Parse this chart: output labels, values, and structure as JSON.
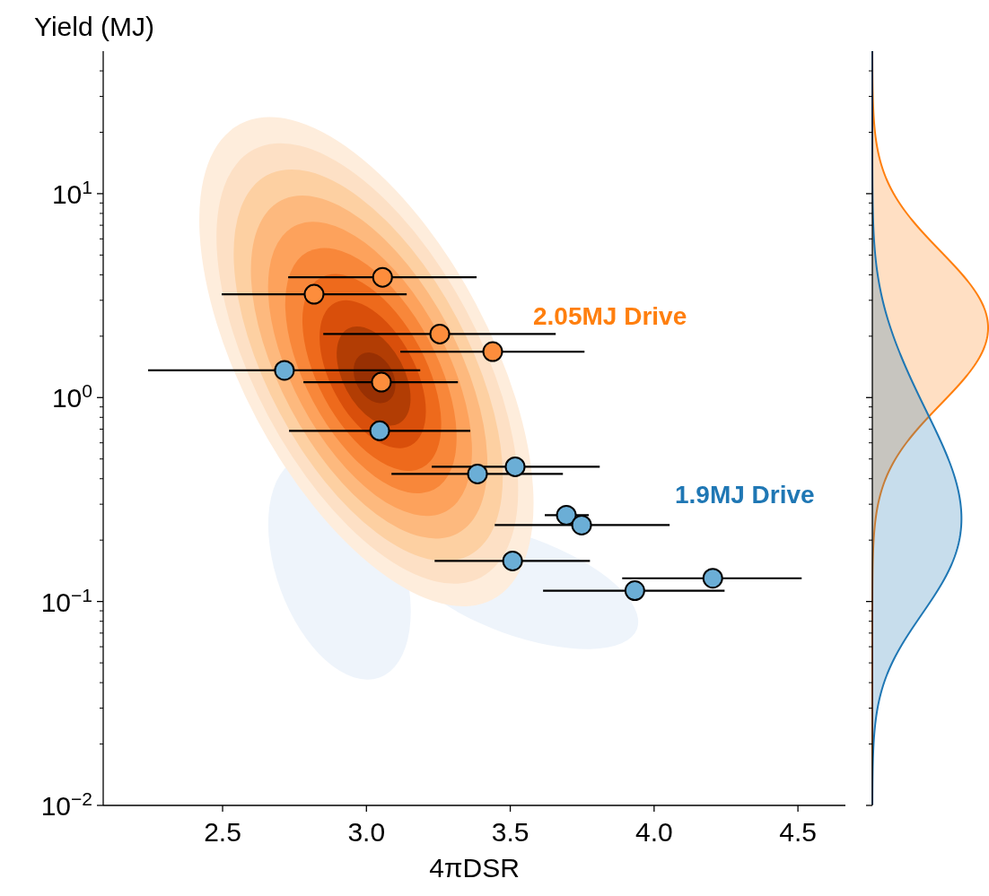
{
  "chart_data": {
    "type": "scatter",
    "xlabel": "4πDSR",
    "ylabel": "Yield (MJ)",
    "log": "y",
    "marker": "circle",
    "xlim": [
      2.085,
      4.665
    ],
    "xticks": [
      {
        "value": 2.5,
        "label": "2.5"
      },
      {
        "value": 3,
        "label": "3.0"
      },
      {
        "value": 3.5,
        "label": "3.5"
      },
      {
        "value": 4,
        "label": "4.0"
      },
      {
        "value": 4.5,
        "label": "4.5"
      }
    ],
    "ylim": [
      0.01,
      50
    ],
    "yticks": [
      {
        "value": 0.01,
        "label": "10$^{−2}$"
      },
      {
        "value": 0.02,
        "label": null
      },
      {
        "value": 0.03,
        "label": null
      },
      {
        "value": 0.04,
        "label": null
      },
      {
        "value": 0.05,
        "label": null
      },
      {
        "value": 0.06,
        "label": null
      },
      {
        "value": 0.07,
        "label": null
      },
      {
        "value": 0.08,
        "label": null
      },
      {
        "value": 0.09,
        "label": null
      },
      {
        "value": 0.1,
        "label": "10$^{−1}$"
      },
      {
        "value": 0.2,
        "label": null
      },
      {
        "value": 0.3,
        "label": null
      },
      {
        "value": 0.4,
        "label": null
      },
      {
        "value": 0.5,
        "label": null
      },
      {
        "value": 0.6,
        "label": null
      },
      {
        "value": 0.7,
        "label": null
      },
      {
        "value": 0.8,
        "label": null
      },
      {
        "value": 0.9,
        "label": null
      },
      {
        "value": 1,
        "label": "10$^{0}$"
      },
      {
        "value": 2,
        "label": null
      },
      {
        "value": 3,
        "label": null
      },
      {
        "value": 4,
        "label": null
      },
      {
        "value": 5,
        "label": null
      },
      {
        "value": 6,
        "label": null
      },
      {
        "value": 7,
        "label": null
      },
      {
        "value": 8,
        "label": null
      },
      {
        "value": 9,
        "label": null
      },
      {
        "value": 10,
        "label": "10$^{1}$"
      },
      {
        "value": 20,
        "label": null
      },
      {
        "value": 30,
        "label": null
      },
      {
        "value": 40,
        "label": null
      }
    ],
    "series": [
      {
        "color": "#fd8d3c",
        "x": [
          3.056,
          2.818,
          3.255,
          3.439,
          3.052
        ],
        "values": [
          3.89,
          3.21,
          2.05,
          1.68,
          1.19
        ],
        "xerrors": [
          [
            2.728,
            3.383
          ],
          [
            2.497,
            3.14
          ],
          [
            2.85,
            3.658
          ],
          [
            3.118,
            3.758
          ],
          [
            2.781,
            3.318
          ]
        ]
      },
      {
        "color": "#6baed6",
        "x": [
          2.715,
          3.046,
          3.386,
          3.517,
          3.695,
          3.748,
          3.508,
          4.204,
          3.933
        ],
        "values": [
          1.36,
          0.687,
          0.422,
          0.458,
          0.265,
          0.237,
          0.158,
          0.13,
          0.113
        ],
        "xerrors": [
          [
            2.241,
            3.187
          ],
          [
            2.731,
            3.361
          ],
          [
            3.087,
            3.683
          ],
          [
            3.227,
            3.811
          ],
          [
            3.62,
            3.773
          ],
          [
            3.446,
            4.054
          ],
          [
            3.237,
            3.777
          ],
          [
            3.889,
            4.513
          ],
          [
            3.614,
            4.245
          ]
        ]
      }
    ],
    "annotations": [
      "2.05MJ Drive",
      "1.9MJ Drive"
    ]
  }
}
